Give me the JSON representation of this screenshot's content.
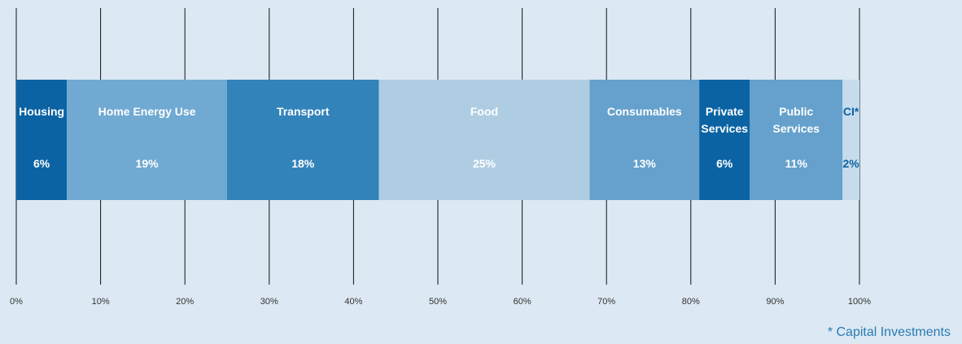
{
  "chart_data": {
    "type": "stacked_bar",
    "series": [
      {
        "name": "Housing",
        "color": "#0b63a3",
        "label_color": "#ffffff",
        "values": [
          6
        ],
        "value_labels": [
          "6%"
        ]
      },
      {
        "name": "Home Energy Use",
        "color": "#70a9d1",
        "label_color": "#ffffff",
        "values": [
          19
        ],
        "value_labels": [
          "19%"
        ]
      },
      {
        "name": "Transport",
        "color": "#3383bb",
        "label_color": "#ffffff",
        "values": [
          18
        ],
        "value_labels": [
          "18%"
        ]
      },
      {
        "name": "Food",
        "color": "#aecde3",
        "label_color": "#ffffff",
        "values": [
          25
        ],
        "value_labels": [
          "25%"
        ]
      },
      {
        "name": "Consumables",
        "color": "#65a1cc",
        "label_color": "#ffffff",
        "values": [
          13
        ],
        "value_labels": [
          "13%"
        ]
      },
      {
        "name": "Private Services",
        "color": "#0b63a3",
        "label_color": "#ffffff",
        "values": [
          6
        ],
        "value_labels": [
          "6%"
        ]
      },
      {
        "name": "Public Services",
        "color": "#65a1cc",
        "label_color": "#ffffff",
        "values": [
          11
        ],
        "value_labels": [
          "11%"
        ]
      },
      {
        "name": "CI*",
        "color": "#c6dcec",
        "label_color": "#0b63a3",
        "values": [
          2
        ],
        "value_labels": [
          "2%"
        ]
      }
    ],
    "xlim": [
      0,
      100
    ],
    "xticks": [
      {
        "value": 0,
        "label": "0%"
      },
      {
        "value": 10,
        "label": "10%"
      },
      {
        "value": 20,
        "label": "20%"
      },
      {
        "value": 30,
        "label": "30%"
      },
      {
        "value": 40,
        "label": "40%"
      },
      {
        "value": 50,
        "label": "50%"
      },
      {
        "value": 60,
        "label": "60%"
      },
      {
        "value": 70,
        "label": "70%"
      },
      {
        "value": 80,
        "label": "80%"
      },
      {
        "value": 90,
        "label": "90%"
      },
      {
        "value": 100,
        "label": "100%"
      }
    ],
    "grid": true,
    "annotation": "* Capital Investments"
  }
}
